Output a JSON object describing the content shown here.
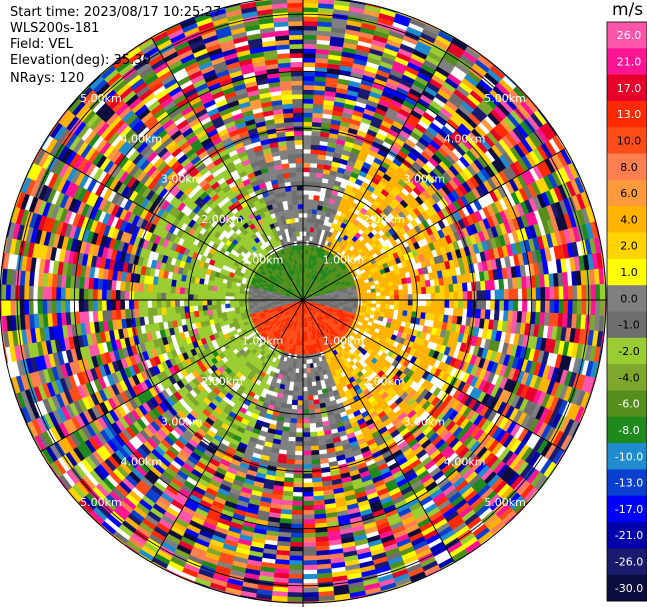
{
  "header": {
    "start_time": "Start time: 2023/08/17 10:25:27",
    "instrument": "WLS200s-181",
    "field": "Field: VEL",
    "elevation": "Elevation(deg): 35.30",
    "nrays": "NRays: 120"
  },
  "chart_data": {
    "type": "heatmap",
    "projection": "polar-ppi",
    "field": "VEL",
    "unit": "m/s",
    "n_rays": 120,
    "range_rings_km": [
      1.0,
      2.0,
      3.0,
      4.0,
      5.0
    ],
    "range_ring_labels": [
      "1.00km",
      "2.00km",
      "3.00km",
      "4.00km",
      "5.00km"
    ],
    "max_range_km": 5.3,
    "colorbar": {
      "ticks": [
        "26.0",
        "21.0",
        "17.0",
        "13.0",
        "10.0",
        "8.0",
        "6.0",
        "4.0",
        "2.0",
        "1.0",
        "0.0",
        "-1.0",
        "-2.0",
        "-4.0",
        "-6.0",
        "-8.0",
        "-10.0",
        "-13.0",
        "-17.0",
        "-21.0",
        "-26.0",
        "-30.0"
      ],
      "colors": [
        "#ff55aa",
        "#ff1493",
        "#e6002a",
        "#ff2a00",
        "#ff4d1a",
        "#ff7f50",
        "#ff9a3c",
        "#ffb300",
        "#ffd400",
        "#ffff00",
        "#808080",
        "#6e6e6e",
        "#9acd32",
        "#7da82c",
        "#548f1e",
        "#1e8a1e",
        "#1e8ccf",
        "#0a40d0",
        "#0000ff",
        "#0000aa",
        "#1a1a6e",
        "#0c0c3e"
      ]
    },
    "inner_pattern": {
      "near_ring_km": 1.0,
      "north_sector": "-6.0",
      "south_sector": "10.0",
      "east_band": "4.0",
      "west_band": "-2.0",
      "noise_beyond_km": 3.0
    }
  }
}
